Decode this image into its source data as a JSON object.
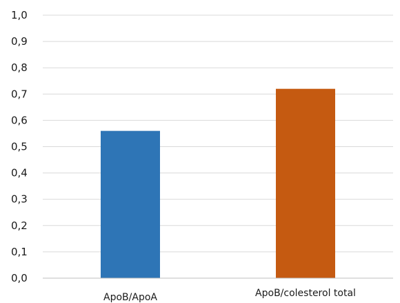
{
  "chart_data": {
    "type": "bar",
    "title": "",
    "xlabel": "",
    "ylabel": "",
    "categories": [
      "ApoB/ApoA",
      "ApoB/colesterol total"
    ],
    "values": [
      0.56,
      0.72
    ],
    "colors": [
      "#2e75b6",
      "#c55a11"
    ],
    "ylim": [
      0,
      1.0
    ],
    "yticks": [
      "0,0",
      "0,1",
      "0,2",
      "0,3",
      "0,4",
      "0,5",
      "0,6",
      "0,7",
      "0,8",
      "0,9",
      "1,0"
    ],
    "grid": true,
    "legend": "none"
  }
}
